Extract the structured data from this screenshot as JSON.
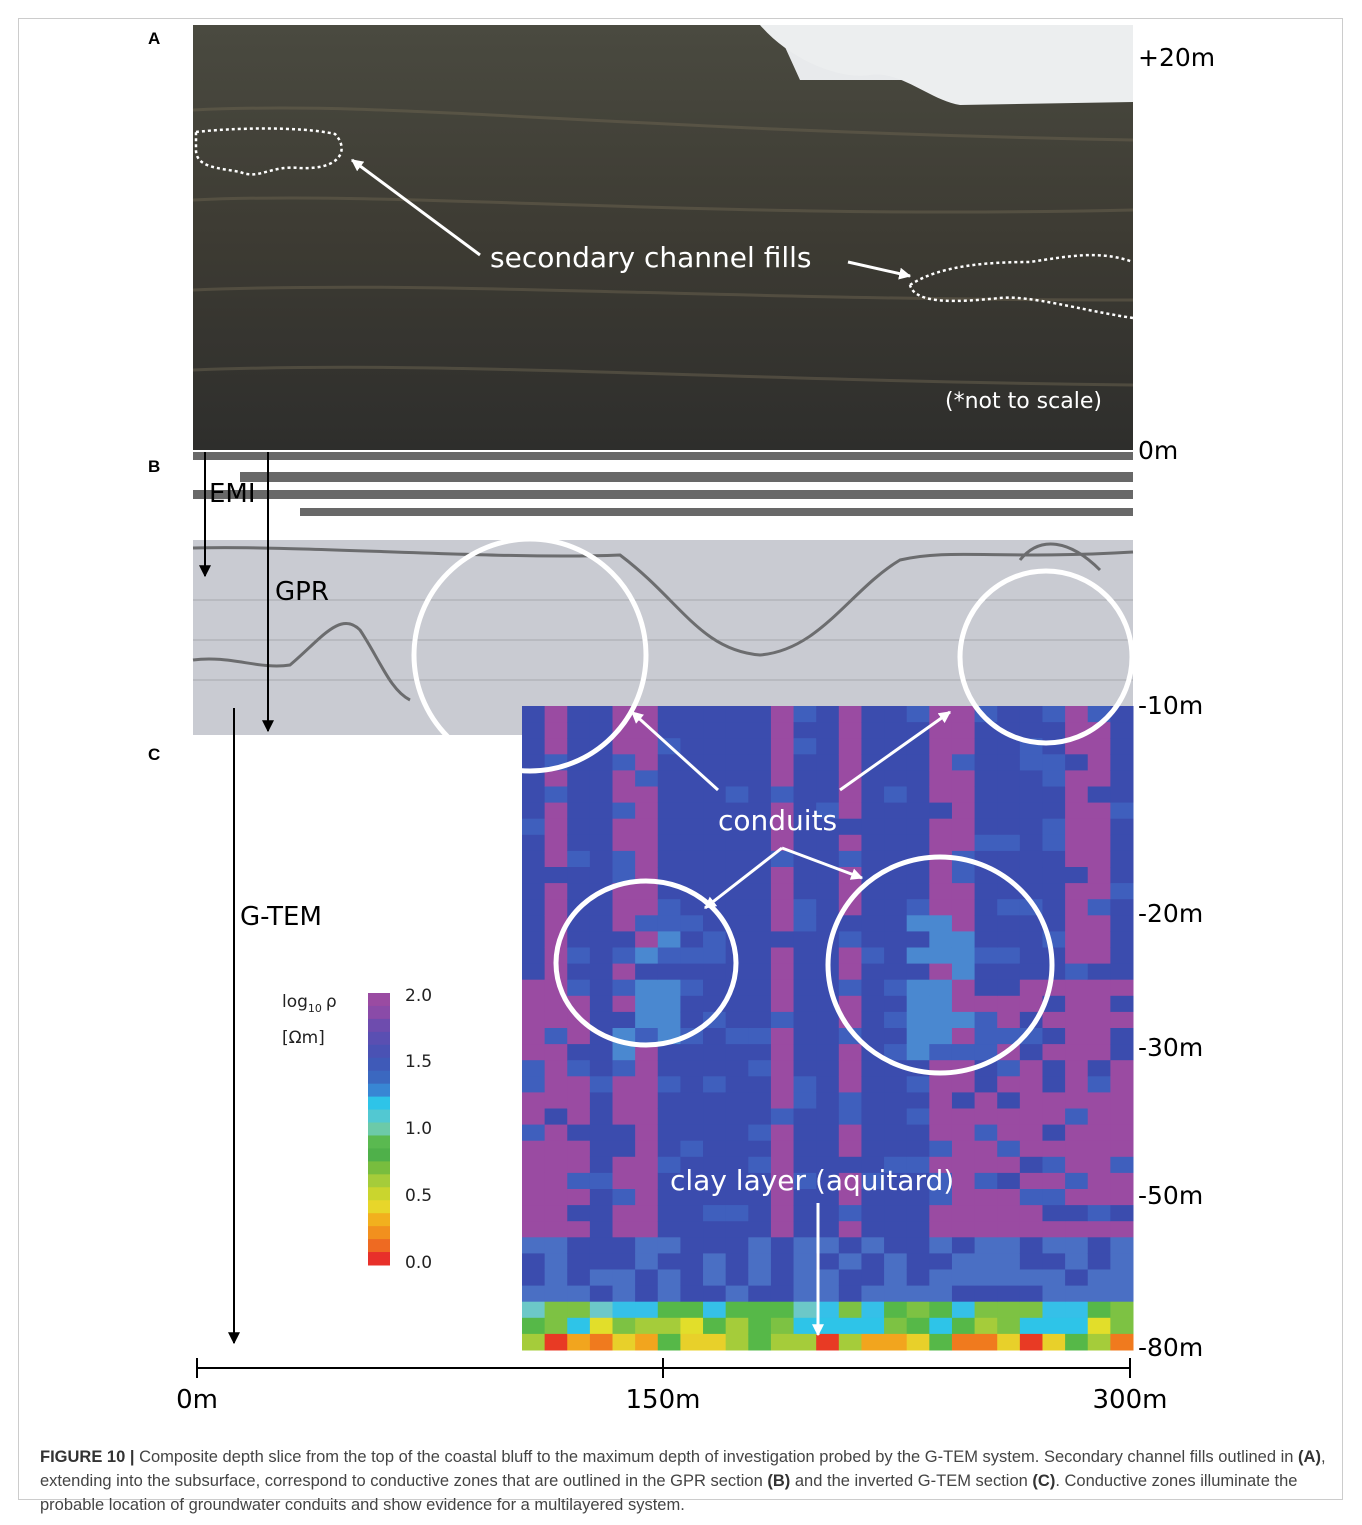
{
  "panels": {
    "a": "A",
    "b": "B",
    "c": "C"
  },
  "depth_labels": [
    "+20m",
    "0m",
    "-10m",
    "-20m",
    "-30m",
    "-50m",
    "-80m"
  ],
  "annotations": {
    "secondary": "secondary channel fills",
    "scale_note": "(*not to scale)",
    "conduits": "conduits",
    "clay": "clay layer (aquitard)"
  },
  "methods": [
    "EMI",
    "GPR",
    "G-TEM"
  ],
  "colorbar": {
    "label_parts": [
      "log",
      "10",
      "ρ"
    ],
    "unit": "[Ωm]",
    "ticks": [
      "2.0",
      "1.5",
      "1.0",
      "0.5",
      "0.0"
    ]
  },
  "x_labels": [
    "0m",
    "150m",
    "300m"
  ],
  "caption": {
    "label": "FIGURE 10 |",
    "parts": [
      " Composite depth slice from the top of the coastal bluff to the maximum depth of investigation probed by the G-TEM system. Secondary channel fills outlined in ",
      "(A)",
      ", extending into the subsurface, correspond to conductive zones that are outlined in the GPR section ",
      "(B)",
      " and the inverted G-TEM section ",
      "(C)",
      ". Conductive zones illuminate the probable location of groundwater conduits and show evidence for a multilayered system."
    ]
  }
}
